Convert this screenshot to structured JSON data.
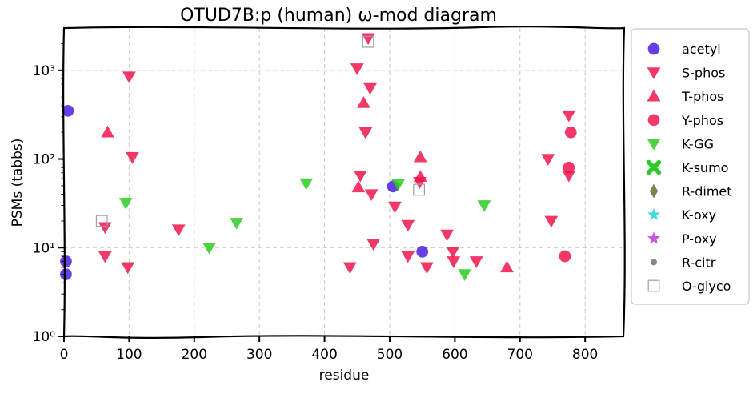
{
  "chart_data": {
    "type": "scatter",
    "title": "OTUD7B:p (human) ω-mod diagram",
    "xlabel": "residue",
    "ylabel": "PSMs (tabbs)",
    "xlim": [
      0,
      860
    ],
    "ylim": [
      1,
      3000
    ],
    "yscale": "log",
    "grid": true,
    "legend_position": "right-outside",
    "x_ticks": [
      0,
      100,
      200,
      300,
      400,
      500,
      600,
      700,
      800
    ],
    "x_tick_labels": [
      "0",
      "100",
      "200",
      "300",
      "400",
      "500",
      "600",
      "700",
      "800"
    ],
    "y_ticks": [
      1,
      10,
      100,
      1000
    ],
    "y_tick_labels": [
      "10⁰",
      "10¹",
      "10²",
      "10³"
    ],
    "series": [
      {
        "name": "acetyl",
        "marker": "circle",
        "color": "#4b1fe0",
        "points": [
          [
            6,
            350
          ],
          [
            3,
            7
          ],
          [
            3,
            5
          ],
          [
            505,
            49
          ],
          [
            550,
            9
          ]
        ]
      },
      {
        "name": "S-phos",
        "marker": "triangle-down",
        "color": "#f0154f",
        "points": [
          [
            100,
            850
          ],
          [
            105,
            105
          ],
          [
            63,
            17
          ],
          [
            63,
            8
          ],
          [
            98,
            6
          ],
          [
            176,
            16
          ],
          [
            450,
            1050
          ],
          [
            467,
            2300
          ],
          [
            463,
            200
          ],
          [
            470,
            630
          ],
          [
            455,
            65
          ],
          [
            472,
            40
          ],
          [
            475,
            11
          ],
          [
            439,
            6
          ],
          [
            508,
            29
          ],
          [
            528,
            18
          ],
          [
            528,
            8
          ],
          [
            546,
            55
          ],
          [
            557,
            6
          ],
          [
            588,
            14
          ],
          [
            597,
            9
          ],
          [
            598,
            7
          ],
          [
            633,
            7
          ],
          [
            743,
            100
          ],
          [
            748,
            20
          ],
          [
            775,
            310
          ],
          [
            775,
            65
          ]
        ]
      },
      {
        "name": "T-phos",
        "marker": "triangle-up",
        "color": "#f0154f",
        "points": [
          [
            67,
            200
          ],
          [
            460,
            430
          ],
          [
            452,
            48
          ],
          [
            547,
            105
          ],
          [
            547,
            63
          ],
          [
            680,
            6
          ]
        ]
      },
      {
        "name": "Y-phos",
        "marker": "circle",
        "color": "#f0154f",
        "points": [
          [
            778,
            200
          ],
          [
            775,
            80
          ],
          [
            769,
            8
          ]
        ]
      },
      {
        "name": "K-GG",
        "marker": "triangle-down",
        "color": "#2ecc22",
        "points": [
          [
            372,
            53
          ],
          [
            513,
            52
          ],
          [
            95,
            32
          ],
          [
            265,
            19
          ],
          [
            223,
            10
          ],
          [
            645,
            30
          ],
          [
            615,
            5
          ]
        ]
      },
      {
        "name": "K-sumo",
        "marker": "x",
        "color": "#2ecc22",
        "points": []
      },
      {
        "name": "R-dimet",
        "marker": "diamond",
        "color": "#6b6b35",
        "points": []
      },
      {
        "name": "K-oxy",
        "marker": "star",
        "color": "#2ecfd0",
        "points": []
      },
      {
        "name": "P-oxy",
        "marker": "star",
        "color": "#c03ad8",
        "points": []
      },
      {
        "name": "R-citr",
        "marker": "dot",
        "color": "#707070",
        "points": []
      },
      {
        "name": "O-glyco",
        "marker": "square-open",
        "color": "#a0a0a0",
        "points": [
          [
            467,
            2100
          ],
          [
            545,
            45
          ],
          [
            58,
            20
          ]
        ]
      }
    ]
  }
}
